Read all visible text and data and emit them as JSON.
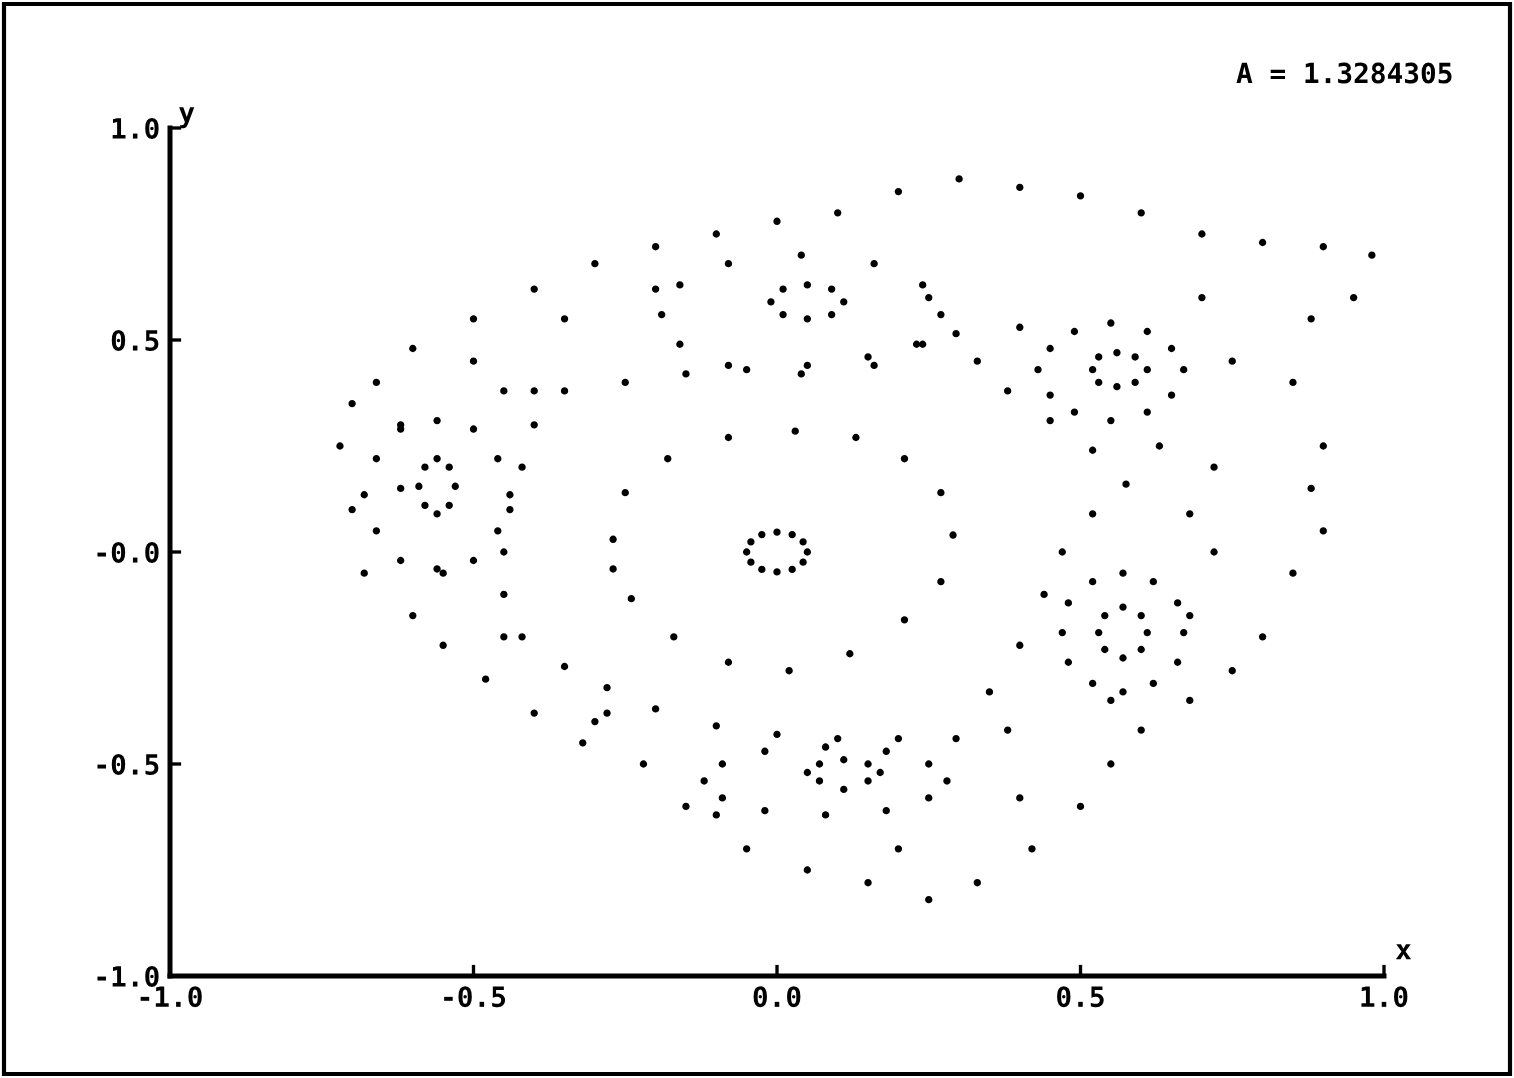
{
  "chart_data": {
    "type": "scatter",
    "xlabel": "x",
    "ylabel": "y",
    "annotations": [
      "A = 1.3284305"
    ],
    "xlim": [
      -1.0,
      1.0
    ],
    "ylim": [
      -1.0,
      1.0
    ],
    "xticks": [
      {
        "value": -1.0,
        "label": "-1.0"
      },
      {
        "value": -0.5,
        "label": "-0.5"
      },
      {
        "value": 0.0,
        "label": "0.0"
      },
      {
        "value": 0.5,
        "label": "0.5"
      },
      {
        "value": 1.0,
        "label": "1.0"
      }
    ],
    "yticks": [
      {
        "value": -1.0,
        "label": "-1.0"
      },
      {
        "value": -0.5,
        "label": "-0.5"
      },
      {
        "value": 0.0,
        "label": "-0.0"
      },
      {
        "value": 0.5,
        "label": "0.5"
      },
      {
        "value": 1.0,
        "label": "1.0"
      }
    ],
    "grid": false,
    "legend": false,
    "marker": "circle",
    "series": [
      {
        "color": "#000000",
        "x": [
          0.05,
          0.043,
          0.025,
          0.0,
          -0.025,
          -0.043,
          -0.05,
          -0.043,
          -0.025,
          0.0,
          0.025,
          0.043
        ],
        "values": [
          0.0,
          0.024,
          0.041,
          0.047,
          0.041,
          0.024,
          0.0,
          -0.024,
          -0.041,
          -0.047,
          -0.041,
          -0.024
        ]
      },
      {
        "color": "#000000",
        "x": [
          -0.27,
          -0.25,
          -0.18,
          -0.08,
          0.03,
          0.13,
          0.21,
          0.27,
          0.29,
          0.27,
          0.21,
          0.12,
          0.02,
          -0.08,
          -0.17,
          -0.24,
          -0.27
        ],
        "values": [
          0.03,
          0.14,
          0.22,
          0.27,
          0.285,
          0.27,
          0.22,
          0.14,
          0.04,
          -0.07,
          -0.16,
          -0.24,
          -0.28,
          -0.26,
          -0.2,
          -0.11,
          -0.04
        ]
      },
      {
        "color": "#000000",
        "x": [
          -0.35,
          -0.25,
          -0.15,
          -0.05,
          0.05,
          0.15,
          0.23,
          0.295,
          0.33,
          0.38,
          0.45,
          0.52,
          0.575,
          0.52,
          0.47,
          0.44,
          0.4,
          0.35,
          0.295,
          0.2,
          0.1,
          0.0,
          -0.1,
          -0.2,
          -0.28,
          -0.35,
          -0.42,
          -0.45,
          -0.45,
          -0.44,
          -0.42,
          -0.4,
          -0.45,
          -0.4,
          0.25,
          0.4,
          0.63,
          0.68,
          0.38,
          -0.45,
          -0.28
        ],
        "values": [
          0.38,
          0.4,
          0.42,
          0.43,
          0.44,
          0.46,
          0.49,
          0.515,
          0.45,
          0.38,
          0.31,
          0.24,
          0.16,
          0.09,
          0.0,
          -0.1,
          -0.22,
          -0.33,
          -0.44,
          -0.44,
          -0.44,
          -0.43,
          -0.41,
          -0.37,
          -0.32,
          -0.27,
          -0.2,
          -0.1,
          0.0,
          0.1,
          0.2,
          0.3,
          0.38,
          0.38,
          0.6,
          0.53,
          0.25,
          0.09,
          -0.42,
          -0.2,
          -0.38
        ]
      },
      {
        "color": "#000000",
        "x": [
          -0.53,
          -0.54,
          -0.56,
          -0.58,
          -0.59,
          -0.58,
          -0.56,
          -0.54,
          -0.44,
          -0.46,
          -0.5,
          -0.56,
          -0.62,
          -0.66,
          -0.68,
          -0.66,
          -0.62,
          -0.56,
          -0.5,
          -0.46
        ],
        "values": [
          0.155,
          0.2,
          0.22,
          0.2,
          0.155,
          0.11,
          0.09,
          0.11,
          0.135,
          0.22,
          0.29,
          0.31,
          0.29,
          0.22,
          0.135,
          0.05,
          -0.02,
          -0.04,
          -0.02,
          0.05
        ]
      },
      {
        "color": "#000000",
        "x": [
          0.11,
          0.09,
          0.05,
          0.01,
          -0.01,
          0.01,
          0.05,
          0.09,
          0.27,
          0.24,
          0.16,
          0.04,
          -0.08,
          -0.16,
          -0.19,
          -0.16,
          -0.08,
          0.04,
          0.16,
          0.24
        ],
        "values": [
          0.59,
          0.62,
          0.63,
          0.62,
          0.59,
          0.56,
          0.55,
          0.56,
          0.56,
          0.63,
          0.68,
          0.7,
          0.68,
          0.63,
          0.56,
          0.49,
          0.44,
          0.42,
          0.44,
          0.49
        ]
      },
      {
        "color": "#000000",
        "x": [
          0.61,
          0.59,
          0.56,
          0.53,
          0.52,
          0.53,
          0.56,
          0.59,
          0.67,
          0.65,
          0.61,
          0.55,
          0.49,
          0.45,
          0.43,
          0.45,
          0.49,
          0.55,
          0.61,
          0.65
        ],
        "values": [
          0.43,
          0.46,
          0.47,
          0.46,
          0.43,
          0.4,
          0.39,
          0.4,
          0.43,
          0.48,
          0.52,
          0.54,
          0.52,
          0.48,
          0.43,
          0.37,
          0.33,
          0.31,
          0.33,
          0.37
        ]
      },
      {
        "color": "#000000",
        "x": [
          0.61,
          0.6,
          0.57,
          0.54,
          0.53,
          0.54,
          0.57,
          0.6,
          0.67,
          0.66,
          0.62,
          0.57,
          0.52,
          0.48,
          0.47,
          0.48,
          0.52,
          0.57,
          0.62,
          0.66
        ],
        "values": [
          -0.19,
          -0.15,
          -0.13,
          -0.15,
          -0.19,
          -0.23,
          -0.25,
          -0.23,
          -0.19,
          -0.12,
          -0.07,
          -0.05,
          -0.07,
          -0.12,
          -0.19,
          -0.26,
          -0.31,
          -0.33,
          -0.31,
          -0.26
        ]
      },
      {
        "color": "#000000",
        "x": [
          0.17,
          0.15,
          0.11,
          0.07,
          0.05,
          0.07,
          0.11,
          0.15,
          0.28,
          0.25,
          0.18,
          0.08,
          -0.02,
          -0.09,
          -0.12,
          -0.09,
          -0.02,
          0.08,
          0.18,
          0.25
        ],
        "values": [
          -0.52,
          -0.5,
          -0.49,
          -0.5,
          -0.52,
          -0.54,
          -0.56,
          -0.54,
          -0.54,
          -0.5,
          -0.47,
          -0.46,
          -0.47,
          -0.5,
          -0.54,
          -0.58,
          -0.61,
          -0.62,
          -0.61,
          -0.58
        ]
      },
      {
        "color": "#000000",
        "x": [
          -0.72,
          -0.7,
          -0.68,
          -0.6,
          -0.55,
          -0.48,
          -0.4,
          -0.32,
          -0.22,
          -0.15,
          -0.05,
          0.05,
          0.15,
          0.25,
          0.33,
          0.42,
          0.5,
          0.55,
          0.6,
          0.68,
          0.75,
          0.8,
          0.85,
          0.9,
          0.88,
          0.9,
          0.85,
          0.88,
          0.95,
          0.98,
          0.9,
          0.8,
          0.7,
          0.6,
          0.5,
          0.4,
          0.3,
          0.2,
          0.1,
          0.0,
          -0.1,
          -0.2,
          -0.3,
          -0.4,
          -0.5,
          -0.6,
          -0.66,
          -0.7,
          -0.62,
          -0.5,
          -0.35,
          -0.2,
          0.7,
          0.75,
          0.72,
          0.72,
          0.68,
          0.55,
          0.4,
          0.2,
          -0.1,
          -0.3,
          -0.55,
          -0.62
        ],
        "values": [
          0.25,
          0.1,
          -0.05,
          -0.15,
          -0.22,
          -0.3,
          -0.38,
          -0.45,
          -0.5,
          -0.6,
          -0.7,
          -0.75,
          -0.78,
          -0.82,
          -0.78,
          -0.7,
          -0.6,
          -0.5,
          -0.42,
          -0.35,
          -0.28,
          -0.2,
          -0.05,
          0.05,
          0.15,
          0.25,
          0.4,
          0.55,
          0.6,
          0.7,
          0.72,
          0.73,
          0.75,
          0.8,
          0.84,
          0.86,
          0.88,
          0.85,
          0.8,
          0.78,
          0.75,
          0.72,
          0.68,
          0.62,
          0.55,
          0.48,
          0.4,
          0.35,
          0.3,
          0.45,
          0.55,
          0.62,
          0.6,
          0.45,
          0.2,
          0.0,
          -0.15,
          -0.35,
          -0.58,
          -0.7,
          -0.62,
          -0.4,
          -0.05,
          0.15
        ]
      }
    ]
  }
}
